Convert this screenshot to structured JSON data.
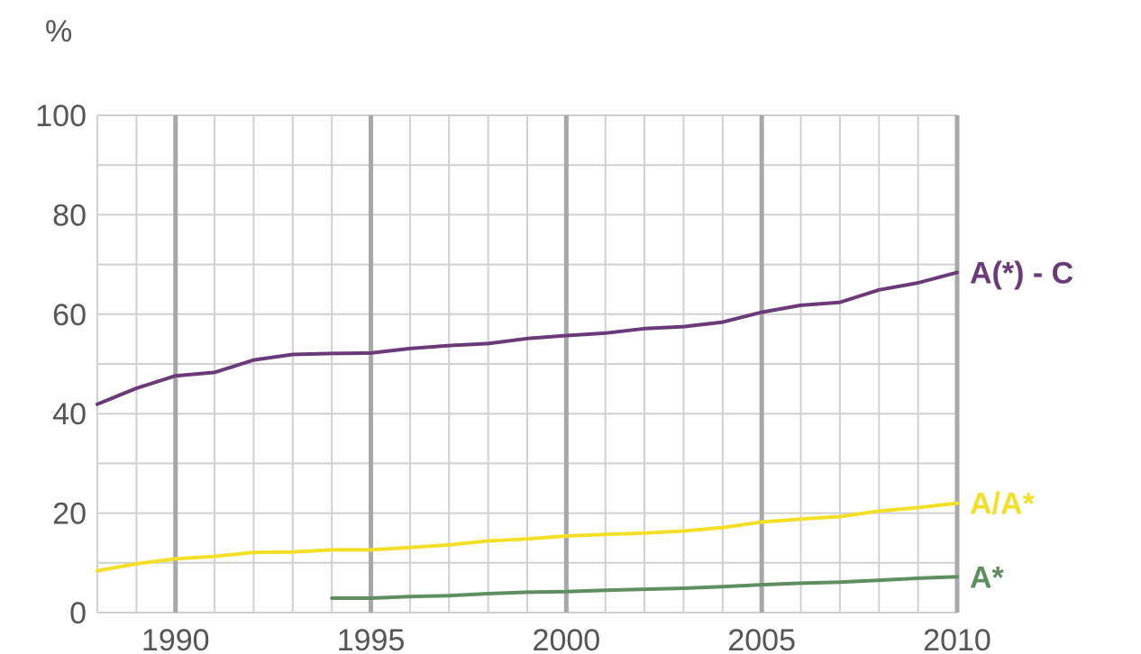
{
  "chart_data": {
    "type": "line",
    "title": "",
    "ylabel": "%",
    "xlabel": "",
    "xlim": [
      1988,
      2010
    ],
    "ylim": [
      0,
      100
    ],
    "xticks": [
      1990,
      1995,
      2000,
      2005,
      2010
    ],
    "yticks": [
      0,
      20,
      40,
      60,
      80,
      100
    ],
    "grid": true,
    "series": [
      {
        "name": "A(*) - C",
        "color": "#6b3a78",
        "x": [
          1988,
          1989,
          1990,
          1991,
          1992,
          1993,
          1994,
          1995,
          1996,
          1997,
          1998,
          1999,
          2000,
          2001,
          2002,
          2003,
          2004,
          2005,
          2006,
          2007,
          2008,
          2009,
          2010
        ],
        "y": [
          41.9,
          45.1,
          47.6,
          48.3,
          50.8,
          51.9,
          52.1,
          52.2,
          53.1,
          53.7,
          54.1,
          55.1,
          55.7,
          56.2,
          57.1,
          57.5,
          58.4,
          60.4,
          61.8,
          62.4,
          64.9,
          66.3,
          68.4
        ]
      },
      {
        "name": "A/A*",
        "color": "#f3df27",
        "x": [
          1988,
          1989,
          1990,
          1991,
          1992,
          1993,
          1994,
          1995,
          1996,
          1997,
          1998,
          1999,
          2000,
          2001,
          2002,
          2003,
          2004,
          2005,
          2006,
          2007,
          2008,
          2009,
          2010
        ],
        "y": [
          8.4,
          9.8,
          10.8,
          11.3,
          12.1,
          12.2,
          12.6,
          12.6,
          13.1,
          13.6,
          14.4,
          14.8,
          15.4,
          15.7,
          16.0,
          16.4,
          17.1,
          18.2,
          18.8,
          19.3,
          20.4,
          21.1,
          22.0
        ]
      },
      {
        "name": "A*",
        "color": "#5f8e60",
        "x": [
          1994,
          1995,
          1996,
          1997,
          1998,
          1999,
          2000,
          2001,
          2002,
          2003,
          2004,
          2005,
          2006,
          2007,
          2008,
          2009,
          2010
        ],
        "y": [
          2.9,
          2.9,
          3.2,
          3.4,
          3.8,
          4.1,
          4.2,
          4.5,
          4.7,
          4.9,
          5.2,
          5.6,
          5.9,
          6.1,
          6.5,
          6.9,
          7.2
        ]
      }
    ]
  }
}
